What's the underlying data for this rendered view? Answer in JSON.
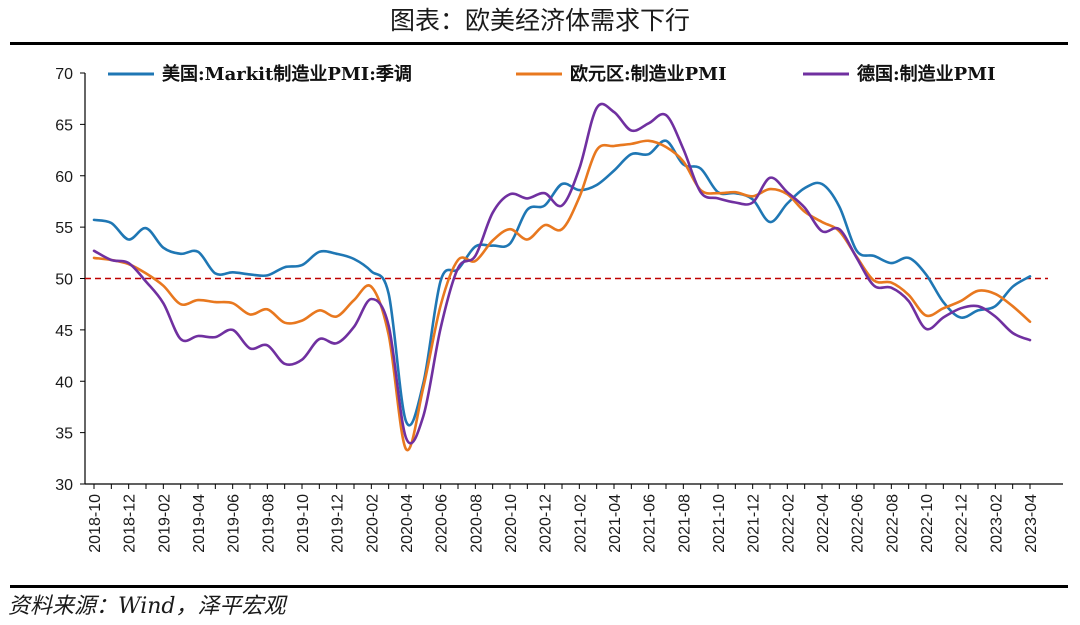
{
  "title": "图表：欧美经济体需求下行",
  "source": "资料来源：Wind，泽平宏观",
  "chart_data": {
    "type": "line",
    "ylim": [
      30,
      70
    ],
    "yticks": [
      30,
      35,
      40,
      45,
      50,
      55,
      60,
      65,
      70
    ],
    "reference_line": {
      "value": 50,
      "color": "#c00000",
      "style": "dashed"
    },
    "x": [
      "2018-10",
      "2018-11",
      "2018-12",
      "2019-01",
      "2019-02",
      "2019-03",
      "2019-04",
      "2019-05",
      "2019-06",
      "2019-07",
      "2019-08",
      "2019-09",
      "2019-10",
      "2019-11",
      "2019-12",
      "2020-01",
      "2020-02",
      "2020-03",
      "2020-04",
      "2020-05",
      "2020-06",
      "2020-07",
      "2020-08",
      "2020-09",
      "2020-10",
      "2020-11",
      "2020-12",
      "2021-01",
      "2021-02",
      "2021-03",
      "2021-04",
      "2021-05",
      "2021-06",
      "2021-07",
      "2021-08",
      "2021-09",
      "2021-10",
      "2021-11",
      "2021-12",
      "2022-01",
      "2022-02",
      "2022-03",
      "2022-04",
      "2022-05",
      "2022-06",
      "2022-07",
      "2022-08",
      "2022-09",
      "2022-10",
      "2022-11",
      "2022-12",
      "2023-01",
      "2023-02",
      "2023-03",
      "2023-04"
    ],
    "xtick_labels": [
      "2018-10",
      "2018-12",
      "2019-02",
      "2019-04",
      "2019-06",
      "2019-08",
      "2019-10",
      "2019-12",
      "2020-02",
      "2020-04",
      "2020-06",
      "2020-08",
      "2020-10",
      "2020-12",
      "2021-02",
      "2021-04",
      "2021-06",
      "2021-08",
      "2021-10",
      "2021-12",
      "2022-02",
      "2022-04",
      "2022-06",
      "2022-08",
      "2022-10",
      "2022-12",
      "2023-02",
      "2023-04"
    ],
    "legend_position": "top",
    "series": [
      {
        "name": "美国:Markit制造业PMI:季调",
        "color": "#1f77b4",
        "values": [
          55.7,
          55.4,
          53.8,
          54.9,
          53.0,
          52.4,
          52.6,
          50.5,
          50.6,
          50.4,
          50.3,
          51.1,
          51.3,
          52.6,
          52.4,
          51.9,
          50.7,
          48.5,
          36.1,
          39.8,
          49.8,
          50.9,
          53.1,
          53.2,
          53.4,
          56.7,
          57.1,
          59.2,
          58.6,
          59.1,
          60.5,
          62.1,
          62.1,
          63.4,
          61.1,
          60.7,
          58.4,
          58.3,
          57.7,
          55.5,
          57.3,
          58.8,
          59.2,
          57.0,
          52.7,
          52.2,
          51.5,
          52.0,
          50.4,
          47.7,
          46.2,
          46.9,
          47.3,
          49.2,
          50.2
        ]
      },
      {
        "name": "欧元区:制造业PMI",
        "color": "#e8781f",
        "values": [
          52.0,
          51.8,
          51.4,
          50.5,
          49.3,
          47.5,
          47.9,
          47.7,
          47.6,
          46.5,
          47.0,
          45.7,
          45.9,
          46.9,
          46.3,
          47.9,
          49.2,
          44.5,
          33.4,
          39.4,
          47.4,
          51.8,
          51.7,
          53.7,
          54.8,
          53.8,
          55.2,
          54.8,
          57.9,
          62.5,
          62.9,
          63.1,
          63.4,
          62.8,
          61.4,
          58.6,
          58.3,
          58.4,
          58.0,
          58.7,
          58.2,
          56.5,
          55.5,
          54.6,
          52.1,
          49.8,
          49.6,
          48.4,
          46.4,
          47.1,
          47.8,
          48.8,
          48.5,
          47.3,
          45.8
        ]
      },
      {
        "name": "德国:制造业PMI",
        "color": "#7030a0",
        "values": [
          52.7,
          51.8,
          51.5,
          49.7,
          47.6,
          44.1,
          44.4,
          44.3,
          45.0,
          43.2,
          43.5,
          41.7,
          42.1,
          44.1,
          43.7,
          45.3,
          48.0,
          45.4,
          34.5,
          36.6,
          45.2,
          51.0,
          52.2,
          56.4,
          58.2,
          57.8,
          58.3,
          57.1,
          60.7,
          66.6,
          66.2,
          64.4,
          65.1,
          65.9,
          62.6,
          58.4,
          57.8,
          57.4,
          57.4,
          59.8,
          58.4,
          56.9,
          54.6,
          54.8,
          52.0,
          49.3,
          49.1,
          47.8,
          45.1,
          46.2,
          47.1,
          47.3,
          46.3,
          44.7,
          44.0
        ]
      }
    ]
  }
}
